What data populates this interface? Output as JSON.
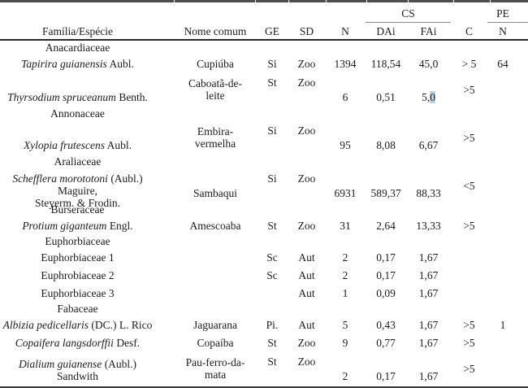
{
  "table": {
    "group_headers": {
      "cs": "CS",
      "pe": "PE"
    },
    "columns": [
      "Família/Espécie",
      "Nome comum",
      "GE",
      "SD",
      "N",
      "DAi",
      "FAi",
      "C",
      "N"
    ],
    "highlight_color": "#bcd4ea",
    "rows": [
      {
        "type": "family",
        "name": "Anacardiaceae"
      },
      {
        "type": "species",
        "name_lines": [
          {
            "i": "Tapirira guianensis",
            "r": " Aubl."
          }
        ],
        "common_lines": [
          "Cupiúba"
        ],
        "ge": "Si",
        "sd": "Zoo",
        "n": "1394",
        "dai": "118,54",
        "fai": "45,0",
        "c": "> 5",
        "pe": "64"
      },
      {
        "type": "species",
        "name_lines": [
          {
            "i": "Thyrsodium spruceanum",
            "r": " Benth."
          }
        ],
        "common_lines": [
          "Caboatã-de-",
          "leite"
        ],
        "ge": "St",
        "sd": "Zoo",
        "n": "6",
        "dai": "0,51",
        "fai": "5,0",
        "fai_runs": [
          {
            "text": "5,",
            "hl": false
          },
          {
            "text": "0",
            "hl": true
          }
        ],
        "c": ">5",
        "pe": ""
      },
      {
        "type": "family",
        "name": "Annonaceae"
      },
      {
        "type": "species",
        "name_lines": [
          {
            "i": "Xylopia frutescens",
            "r": " Aubl."
          }
        ],
        "common_lines": [
          "Embira-",
          "vermelha"
        ],
        "ge": "Si",
        "sd": "Zoo",
        "n": "95",
        "dai": "8,08",
        "fai": "6,67",
        "c": ">5",
        "pe": ""
      },
      {
        "type": "family",
        "name": "Araliaceae"
      },
      {
        "type": "species",
        "name_lines": [
          {
            "i": "Schefflera morototoni",
            "r": " (Aubl.) Maguire,"
          },
          {
            "i": "",
            "r": "Steyerm. & Frodin."
          }
        ],
        "common_lines": [
          "Sambaqui"
        ],
        "ge": "Si",
        "sd": "Zoo",
        "n": "6931",
        "dai": "589,37",
        "fai": "88,33",
        "c": "<5",
        "pe": ""
      },
      {
        "type": "family",
        "name": "Burseraceae"
      },
      {
        "type": "species",
        "name_lines": [
          {
            "i": "Protium giganteum",
            "r": " Engl."
          }
        ],
        "common_lines": [
          "Amescoaba"
        ],
        "ge": "St",
        "sd": "Zoo",
        "n": "31",
        "dai": "2,64",
        "fai": "13,33",
        "c": ">5",
        "pe": ""
      },
      {
        "type": "family",
        "name": "Euphorbiaceae"
      },
      {
        "type": "species",
        "name_lines": [
          {
            "i": "",
            "r": "Euphorbiaceae 1"
          }
        ],
        "common_lines": [],
        "ge": "Sc",
        "sd": "Aut",
        "n": "2",
        "dai": "0,17",
        "fai": "1,67",
        "c": "",
        "pe": ""
      },
      {
        "type": "species",
        "name_lines": [
          {
            "i": "",
            "r": "Euphrobiaceae 2"
          }
        ],
        "common_lines": [],
        "ge": "Sc",
        "sd": "Aut",
        "n": "2",
        "dai": "0,17",
        "fai": "1,67",
        "c": "",
        "pe": ""
      },
      {
        "type": "species",
        "name_lines": [
          {
            "i": "",
            "r": "Euphorbiaceae 3"
          }
        ],
        "common_lines": [],
        "ge": "",
        "sd": "Aut",
        "n": "1",
        "dai": "0,09",
        "fai": "1,67",
        "c": "",
        "pe": ""
      },
      {
        "type": "family",
        "name": "Fabaceae"
      },
      {
        "type": "species",
        "name_lines": [
          {
            "i": "Albizia pedicellaris",
            "r": " (DC.) L. Rico"
          }
        ],
        "common_lines": [
          "Jaguarana"
        ],
        "ge": "Pi.",
        "sd": "Aut",
        "n": "5",
        "dai": "0,43",
        "fai": "1,67",
        "c": ">5",
        "pe": "1"
      },
      {
        "type": "species",
        "name_lines": [
          {
            "i": "Copaifera langsdorffii",
            "r": " Desf."
          }
        ],
        "common_lines": [
          "Copaíba"
        ],
        "ge": "St",
        "sd": "Zoo",
        "n": "9",
        "dai": "0,77",
        "fai": "1,67",
        "c": ">5",
        "pe": ""
      },
      {
        "type": "species",
        "name_lines": [
          {
            "i": "Dialium guianense",
            "r": " (Aubl.) Sandwith"
          }
        ],
        "common_lines": [
          "Pau-ferro-da-",
          "mata"
        ],
        "ge": "St",
        "sd": "Zoo",
        "n": "2",
        "dai": "0,17",
        "fai": "1,67",
        "c": ">5",
        "pe": ""
      }
    ]
  }
}
